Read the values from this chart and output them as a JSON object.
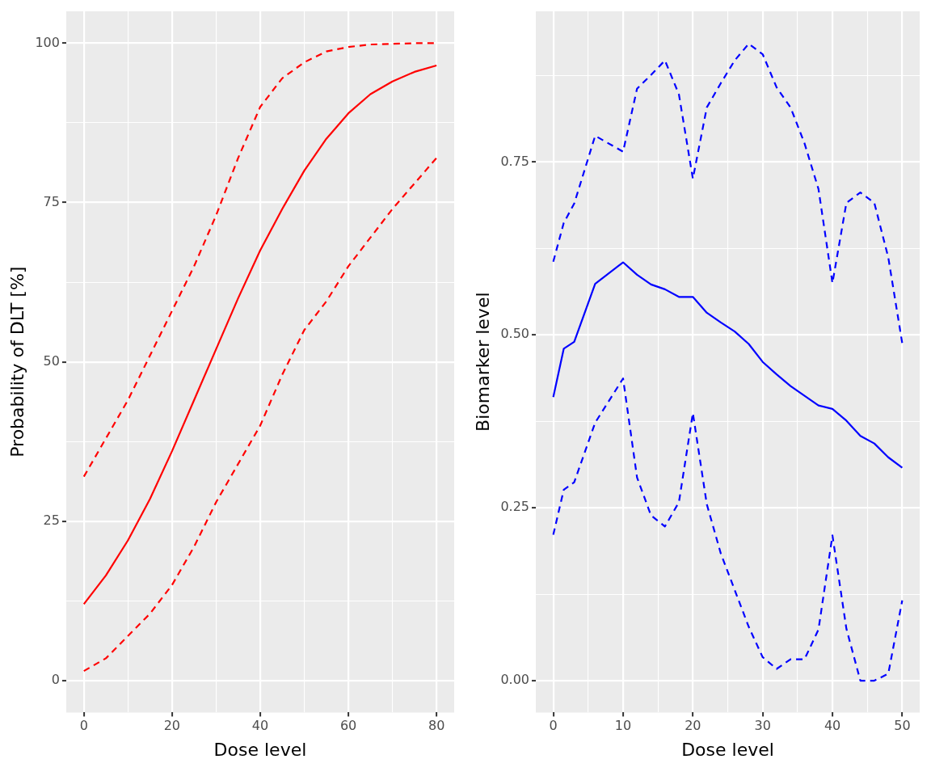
{
  "chart_data": [
    {
      "type": "line",
      "xlabel": "Dose level",
      "ylabel": "Probability of DLT [%]",
      "x": [
        0,
        5,
        10,
        15,
        20,
        25,
        30,
        35,
        40,
        45,
        50,
        55,
        60,
        65,
        70,
        75,
        80
      ],
      "series": [
        {
          "color": "#ff0000",
          "line_style": "solid",
          "values": [
            12,
            16.5,
            22,
            28.5,
            36,
            44,
            52,
            60,
            67.5,
            74,
            80,
            85,
            89,
            92,
            94,
            95.5,
            96.5
          ]
        },
        {
          "color": "#ff0000",
          "line_style": "dashed",
          "values": [
            32,
            38,
            44,
            51,
            58,
            65,
            73,
            82,
            90,
            94.5,
            97,
            98.7,
            99.4,
            99.8,
            99.9,
            100,
            100
          ]
        },
        {
          "color": "#ff0000",
          "line_style": "dashed",
          "values": [
            1.5,
            3.5,
            7,
            10.5,
            15,
            21,
            28,
            34,
            40,
            48,
            55,
            59.5,
            65,
            69.5,
            74,
            78,
            82
          ]
        }
      ],
      "xlim": [
        -4,
        84
      ],
      "xticks": [
        0,
        {
          "value": 10,
          "label": null
        },
        20,
        {
          "value": 30,
          "label": null
        },
        40,
        {
          "value": 50,
          "label": null
        },
        60,
        {
          "value": 70,
          "label": null
        },
        80
      ],
      "ylim": [
        -5,
        105
      ],
      "yticks": [
        0,
        {
          "value": 12.5,
          "label": null
        },
        25,
        {
          "value": 37.5,
          "label": null
        },
        50,
        {
          "value": 62.5,
          "label": null
        },
        75,
        {
          "value": 87.5,
          "label": null
        },
        100
      ],
      "grid": true,
      "legend": false
    },
    {
      "type": "line",
      "xlabel": "Dose level",
      "ylabel": "Biomarker level",
      "x": [
        0,
        1.5,
        3,
        6,
        10,
        12,
        14,
        16,
        18,
        20,
        22,
        24,
        26,
        28,
        30,
        32,
        34,
        36,
        38,
        40,
        42,
        44,
        46,
        48,
        50
      ],
      "series": [
        {
          "color": "#0000ff",
          "line_style": "solid",
          "values": [
            0.41,
            0.48,
            0.49,
            0.574,
            0.605,
            0.587,
            0.573,
            0.566,
            0.555,
            0.555,
            0.532,
            0.518,
            0.505,
            0.487,
            0.461,
            0.443,
            0.426,
            0.412,
            0.398,
            0.393,
            0.376,
            0.354,
            0.343,
            0.323,
            0.308
          ]
        },
        {
          "color": "#0000ff",
          "line_style": "dashed",
          "values": [
            0.606,
            0.662,
            0.69,
            0.788,
            0.765,
            0.856,
            0.876,
            0.897,
            0.848,
            0.726,
            0.829,
            0.864,
            0.897,
            0.921,
            0.906,
            0.858,
            0.829,
            0.777,
            0.711,
            0.575,
            0.691,
            0.706,
            0.691,
            0.612,
            0.488
          ]
        },
        {
          "color": "#0000ff",
          "line_style": "dashed",
          "values": [
            0.211,
            0.276,
            0.287,
            0.373,
            0.437,
            0.294,
            0.239,
            0.223,
            0.258,
            0.387,
            0.255,
            0.184,
            0.131,
            0.078,
            0.034,
            0.017,
            0.031,
            0.031,
            0.074,
            0.21,
            0.075,
            0,
            0,
            0.01,
            0.116
          ]
        }
      ],
      "xlim": [
        -2.5,
        52.5
      ],
      "xticks": [
        0,
        {
          "value": 5,
          "label": null
        },
        10,
        {
          "value": 15,
          "label": null
        },
        20,
        {
          "value": 25,
          "label": null
        },
        30,
        {
          "value": 35,
          "label": null
        },
        40,
        {
          "value": 45,
          "label": null
        },
        50
      ],
      "ylim": [
        -0.046,
        0.968
      ],
      "yticks": [
        {
          "value": 0,
          "label": "0.00"
        },
        {
          "value": 0.125,
          "label": null
        },
        0.25,
        {
          "value": 0.375,
          "label": null
        },
        {
          "value": 0.5,
          "label": "0.50"
        },
        {
          "value": 0.625,
          "label": null
        },
        0.75,
        {
          "value": 0.875,
          "label": null
        }
      ],
      "grid": true,
      "legend": false
    }
  ]
}
